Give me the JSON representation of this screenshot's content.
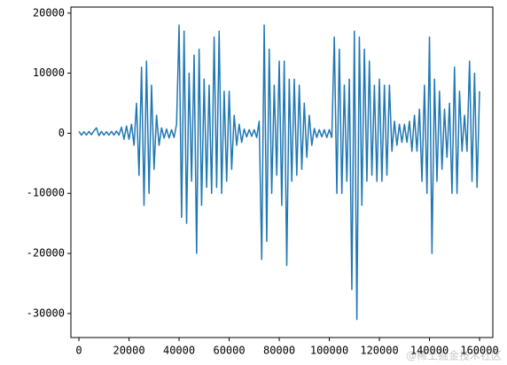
{
  "chart_data": {
    "type": "line",
    "color": "#1f77b4",
    "grid": false,
    "x": [
      0,
      1000,
      2000,
      3000,
      4000,
      5000,
      6000,
      7000,
      8000,
      9000,
      10000,
      11000,
      12000,
      13000,
      14000,
      15000,
      16000,
      17000,
      18000,
      19000,
      20000,
      21000,
      22000,
      23000,
      24000,
      25000,
      26000,
      27000,
      28000,
      29000,
      30000,
      31000,
      32000,
      33000,
      34000,
      35000,
      36000,
      37000,
      38000,
      39000,
      40000,
      41000,
      42000,
      43000,
      44000,
      45000,
      46000,
      47000,
      48000,
      49000,
      50000,
      51000,
      52000,
      53000,
      54000,
      55000,
      56000,
      57000,
      58000,
      59000,
      60000,
      61000,
      62000,
      63000,
      64000,
      65000,
      66000,
      67000,
      68000,
      69000,
      70000,
      71000,
      72000,
      73000,
      74000,
      75000,
      76000,
      77000,
      78000,
      79000,
      80000,
      81000,
      82000,
      83000,
      84000,
      85000,
      86000,
      87000,
      88000,
      89000,
      90000,
      91000,
      92000,
      93000,
      94000,
      95000,
      96000,
      97000,
      98000,
      99000,
      100000,
      101000,
      102000,
      103000,
      104000,
      105000,
      106000,
      107000,
      108000,
      109000,
      110000,
      111000,
      112000,
      113000,
      114000,
      115000,
      116000,
      117000,
      118000,
      119000,
      120000,
      121000,
      122000,
      123000,
      124000,
      125000,
      126000,
      127000,
      128000,
      129000,
      130000,
      131000,
      132000,
      133000,
      134000,
      135000,
      136000,
      137000,
      138000,
      139000,
      140000,
      141000,
      142000,
      143000,
      144000,
      145000,
      146000,
      147000,
      148000,
      149000,
      150000,
      151000,
      152000,
      153000,
      154000,
      155000,
      156000,
      157000,
      158000,
      159000,
      160000
    ],
    "values": [
      300,
      -300,
      250,
      -300,
      300,
      -250,
      400,
      900,
      -400,
      300,
      -300,
      250,
      -300,
      300,
      -300,
      350,
      -300,
      1000,
      -1000,
      1200,
      -1000,
      1500,
      -2000,
      5000,
      -7000,
      11000,
      -12000,
      12000,
      -10000,
      8000,
      -6000,
      3000,
      -2000,
      900,
      -800,
      700,
      -800,
      600,
      -700,
      1500,
      18000,
      -14000,
      17000,
      -15000,
      10000,
      -8000,
      13000,
      -20000,
      14000,
      -12000,
      9000,
      -9000,
      8000,
      -10000,
      16000,
      -9000,
      17000,
      -10000,
      7000,
      -8000,
      7000,
      -6000,
      3000,
      -2000,
      1500,
      -1500,
      700,
      -600,
      600,
      -500,
      600,
      -700,
      2000,
      -21000,
      18000,
      -18000,
      14000,
      -10000,
      8000,
      -7000,
      12000,
      -12000,
      12000,
      -22000,
      9000,
      -8000,
      9000,
      -7000,
      8000,
      -6000,
      5000,
      -4000,
      3000,
      -2000,
      800,
      -700,
      600,
      -600,
      600,
      -700,
      600,
      -700,
      16000,
      -10000,
      14000,
      -10000,
      8000,
      -8000,
      9000,
      -26000,
      17000,
      -31000,
      16000,
      -12000,
      14000,
      -8000,
      12000,
      -7000,
      8000,
      -8000,
      9000,
      -8000,
      8000,
      -7000,
      8000,
      -3000,
      2000,
      -2000,
      1500,
      -1500,
      1500,
      -1500,
      2000,
      -3000,
      3000,
      -3000,
      4000,
      -8000,
      8000,
      -10000,
      16000,
      -20000,
      9000,
      -8000,
      7000,
      -6000,
      4000,
      -4000,
      5000,
      -10000,
      11000,
      -10000,
      7000,
      -3000,
      3000,
      -3000,
      12000,
      -8000,
      10000,
      -9000,
      7000
    ],
    "xlim": [
      -3200,
      165300
    ],
    "ylim": [
      -34000,
      21000
    ],
    "xticks": [
      0,
      20000,
      40000,
      60000,
      80000,
      100000,
      120000,
      140000,
      160000
    ],
    "yticks": [
      -30000,
      -20000,
      -10000,
      0,
      10000,
      20000
    ],
    "watermark": "@稀土掘金技术社区"
  }
}
